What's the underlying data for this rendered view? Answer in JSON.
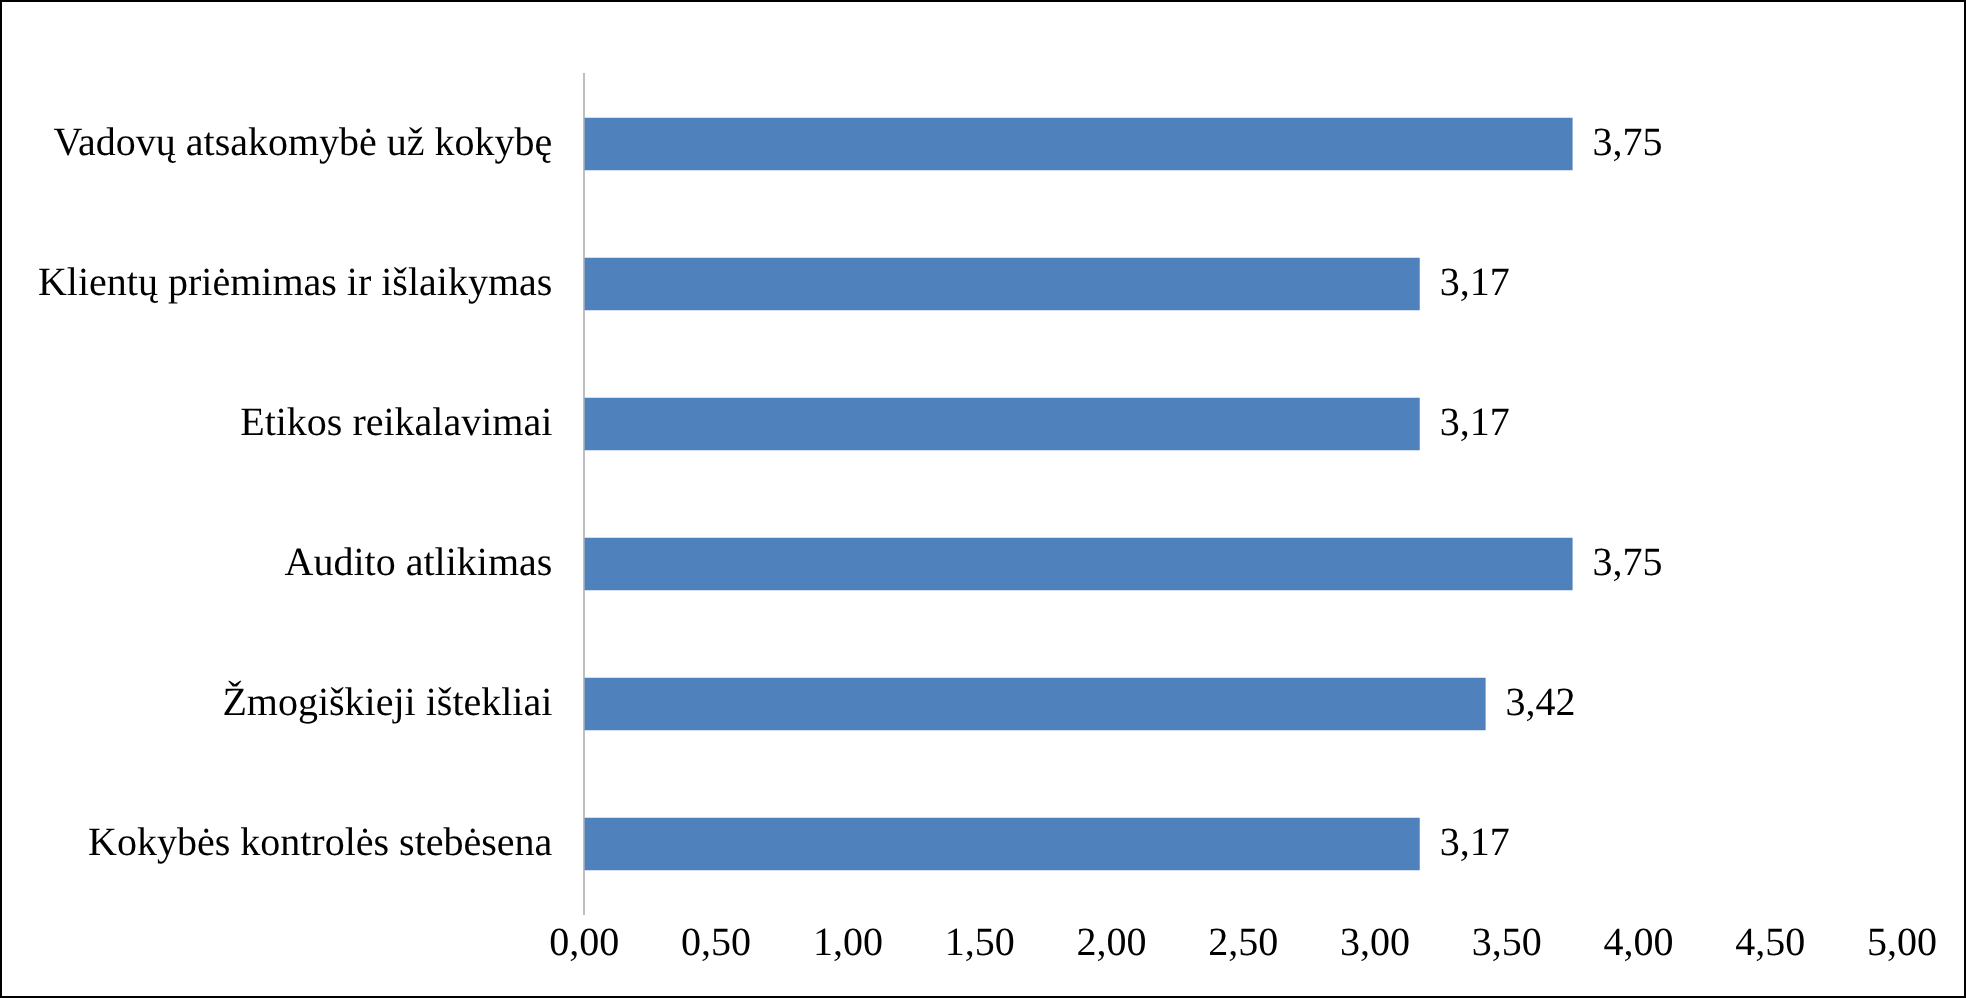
{
  "chart_data": {
    "type": "bar",
    "orientation": "horizontal",
    "categories": [
      "Vadovų atsakomybė už kokybę",
      "Klientų priėmimas ir išlaikymas",
      "Etikos reikalavimai",
      "Audito atlikimas",
      "Žmogiškieji ištekliai",
      "Kokybės kontrolės stebėsena"
    ],
    "values": [
      3.75,
      3.17,
      3.17,
      3.75,
      3.42,
      3.17
    ],
    "value_labels": [
      "3,75",
      "3,17",
      "3,17",
      "3,75",
      "3,42",
      "3,17"
    ],
    "color": "#4f81bd",
    "xlim": [
      0,
      5
    ],
    "xticks": [
      {
        "value": 0,
        "label": "0,00"
      },
      {
        "value": 0.5,
        "label": "0,50"
      },
      {
        "value": 1,
        "label": "1,00"
      },
      {
        "value": 1.5,
        "label": "1,50"
      },
      {
        "value": 2,
        "label": "2,00"
      },
      {
        "value": 2.5,
        "label": "2,50"
      },
      {
        "value": 3,
        "label": "3,00"
      },
      {
        "value": 3.5,
        "label": "3,50"
      },
      {
        "value": 4,
        "label": "4,00"
      },
      {
        "value": 4.5,
        "label": "4,50"
      },
      {
        "value": 5,
        "label": "5,00"
      }
    ],
    "grid": false,
    "legend": false
  }
}
